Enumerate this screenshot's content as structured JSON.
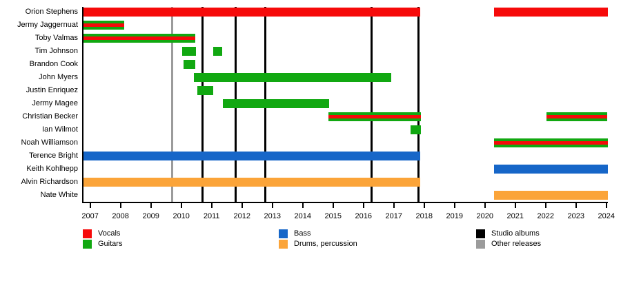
{
  "palette": {
    "vocals": "#f60a0a",
    "guitars": "#11a811",
    "bass": "#1666c8",
    "drums": "#fba439",
    "studio_albums": "#000000",
    "other_releases": "#9b9b9b",
    "axis": "#000000"
  },
  "chart_data": {
    "type": "bar",
    "subtype": "gantt-band-membership-timeline",
    "orientation": "horizontal",
    "title": "",
    "xlabel": "",
    "ylabel": "",
    "grid": false,
    "x_domain": [
      2006.78,
      2024.05
    ],
    "x_ticks": [
      2007,
      2008,
      2009,
      2010,
      2011,
      2012,
      2013,
      2014,
      2015,
      2016,
      2017,
      2018,
      2019,
      2020,
      2021,
      2022,
      2023,
      2024
    ],
    "members": [
      {
        "name": "Orion Stephens",
        "bars": [
          {
            "start": 2006.78,
            "end": 2017.86,
            "roles": [
              "vocals"
            ]
          },
          {
            "start": 2020.29,
            "end": 2024.05,
            "roles": [
              "vocals"
            ]
          }
        ]
      },
      {
        "name": "Jermy Jaggernuat",
        "bars": [
          {
            "start": 2006.78,
            "end": 2008.11,
            "roles": [
              "guitars",
              "vocals"
            ]
          }
        ]
      },
      {
        "name": "Toby Valmas",
        "bars": [
          {
            "start": 2006.78,
            "end": 2010.45,
            "roles": [
              "guitars",
              "vocals"
            ]
          }
        ]
      },
      {
        "name": "Tim Johnson",
        "bars": [
          {
            "start": 2010.03,
            "end": 2010.49,
            "roles": [
              "guitars"
            ]
          },
          {
            "start": 2011.06,
            "end": 2011.35,
            "roles": [
              "guitars"
            ]
          }
        ]
      },
      {
        "name": "Brandon Cook",
        "bars": [
          {
            "start": 2010.08,
            "end": 2010.46,
            "roles": [
              "guitars"
            ]
          }
        ]
      },
      {
        "name": "John Myers",
        "bars": [
          {
            "start": 2010.42,
            "end": 2016.92,
            "roles": [
              "guitars"
            ]
          }
        ]
      },
      {
        "name": "Justin Enriquez",
        "bars": [
          {
            "start": 2010.53,
            "end": 2011.06,
            "roles": [
              "guitars"
            ]
          }
        ]
      },
      {
        "name": "Jermy Magee",
        "bars": [
          {
            "start": 2011.37,
            "end": 2014.88,
            "roles": [
              "guitars"
            ]
          }
        ]
      },
      {
        "name": "Christian Becker",
        "bars": [
          {
            "start": 2014.84,
            "end": 2017.9,
            "roles": [
              "guitars",
              "vocals"
            ]
          },
          {
            "start": 2022.03,
            "end": 2024.03,
            "roles": [
              "guitars",
              "vocals"
            ]
          }
        ]
      },
      {
        "name": "Ian Wilmot",
        "bars": [
          {
            "start": 2017.54,
            "end": 2017.9,
            "roles": [
              "guitars"
            ]
          }
        ]
      },
      {
        "name": "Noah Williamson",
        "bars": [
          {
            "start": 2020.29,
            "end": 2024.05,
            "roles": [
              "guitars",
              "vocals"
            ]
          }
        ]
      },
      {
        "name": "Terence Bright",
        "bars": [
          {
            "start": 2006.78,
            "end": 2017.88,
            "roles": [
              "bass"
            ]
          }
        ]
      },
      {
        "name": "Keith Kohlhepp",
        "bars": [
          {
            "start": 2020.29,
            "end": 2024.05,
            "roles": [
              "bass"
            ]
          }
        ]
      },
      {
        "name": "Alvin Richardson",
        "bars": [
          {
            "start": 2006.78,
            "end": 2017.88,
            "roles": [
              "drums"
            ]
          }
        ]
      },
      {
        "name": "Nate White",
        "bars": [
          {
            "start": 2020.29,
            "end": 2024.05,
            "roles": [
              "drums"
            ]
          }
        ]
      }
    ],
    "event_lines": {
      "studio_albums": [
        2010.69,
        2011.78,
        2012.77,
        2016.27,
        2017.81
      ],
      "other_releases": [
        2009.71
      ]
    },
    "legend_position": "bottom"
  },
  "legend": {
    "columns": [
      [
        {
          "label": "Vocals",
          "color_key": "vocals"
        },
        {
          "label": "Guitars",
          "color_key": "guitars"
        }
      ],
      [
        {
          "label": "Bass",
          "color_key": "bass"
        },
        {
          "label": "Drums, percussion",
          "color_key": "drums"
        }
      ],
      [
        {
          "label": "Studio albums",
          "color_key": "studio_albums"
        },
        {
          "label": "Other releases",
          "color_key": "other_releases"
        }
      ]
    ]
  }
}
